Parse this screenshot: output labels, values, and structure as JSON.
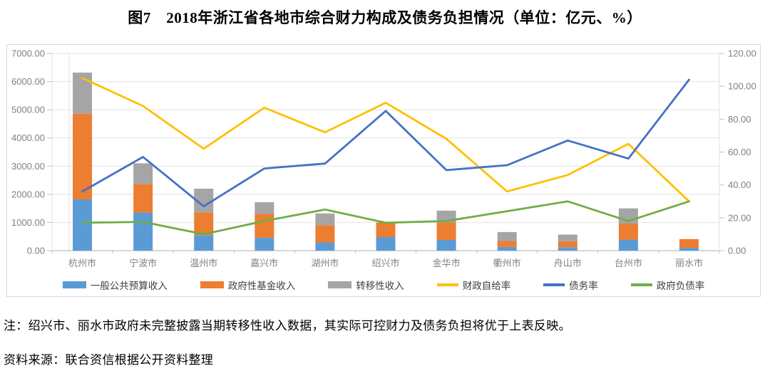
{
  "title": "图7　2018年浙江省各地市综合财力构成及债务负担情况（单位：亿元、%）",
  "notes": {
    "footnote": "注：绍兴市、丽水市政府未完整披露当期转移性收入数据，其实际可控财力及债务负担将优于上表反映。",
    "source": "资料来源：联合资信根据公开资料整理"
  },
  "chart_data": {
    "type": "bar",
    "subtype": "stacked-bar-with-lines-dual-axis",
    "categories": [
      "杭州市",
      "宁波市",
      "温州市",
      "嘉兴市",
      "湖州市",
      "绍兴市",
      "金华市",
      "衢州市",
      "舟山市",
      "台州市",
      "丽水市"
    ],
    "bar_series": [
      {
        "name": "一般公共预算收入",
        "color": "#5b9bd5",
        "axis": "left",
        "values": [
          1820,
          1350,
          550,
          460,
          290,
          480,
          380,
          130,
          120,
          390,
          100
        ]
      },
      {
        "name": "政府性基金收入",
        "color": "#ed7d31",
        "axis": "left",
        "values": [
          3040,
          1010,
          800,
          840,
          610,
          520,
          620,
          210,
          210,
          570,
          310
        ]
      },
      {
        "name": "转移性收入",
        "color": "#a5a5a5",
        "axis": "left",
        "values": [
          1460,
          740,
          850,
          420,
          420,
          0,
          420,
          320,
          240,
          540,
          0
        ]
      }
    ],
    "line_series": [
      {
        "name": "财政自给率",
        "color": "#ffc000",
        "axis": "right",
        "values": [
          105,
          88,
          62,
          87,
          72,
          90,
          68,
          36,
          46,
          65,
          30
        ]
      },
      {
        "name": "债务率",
        "color": "#4472c4",
        "axis": "right",
        "values": [
          36,
          57,
          27,
          50,
          53,
          85,
          49,
          52,
          67,
          56,
          104
        ]
      },
      {
        "name": "政府负债率",
        "color": "#70ad47",
        "axis": "right",
        "values": [
          17,
          17.5,
          10,
          18,
          25,
          17,
          18,
          24,
          30,
          18,
          30
        ]
      }
    ],
    "left_axis": {
      "min": 0,
      "max": 7000,
      "step": 1000,
      "tick_labels": [
        "0.00",
        "1000.00",
        "2000.00",
        "3000.00",
        "4000.00",
        "5000.00",
        "6000.00",
        "7000.00"
      ]
    },
    "right_axis": {
      "min": 0,
      "max": 120,
      "step": 20,
      "tick_labels": [
        "0.00",
        "20.00",
        "40.00",
        "60.00",
        "80.00",
        "100.00",
        "120.00"
      ]
    },
    "grid": true,
    "legend_position": "bottom",
    "colors": {
      "gridline": "#e2e2e2",
      "axis_line": "#bfbfbf",
      "tick_label": "#808080",
      "legend_text": "#404040"
    }
  }
}
